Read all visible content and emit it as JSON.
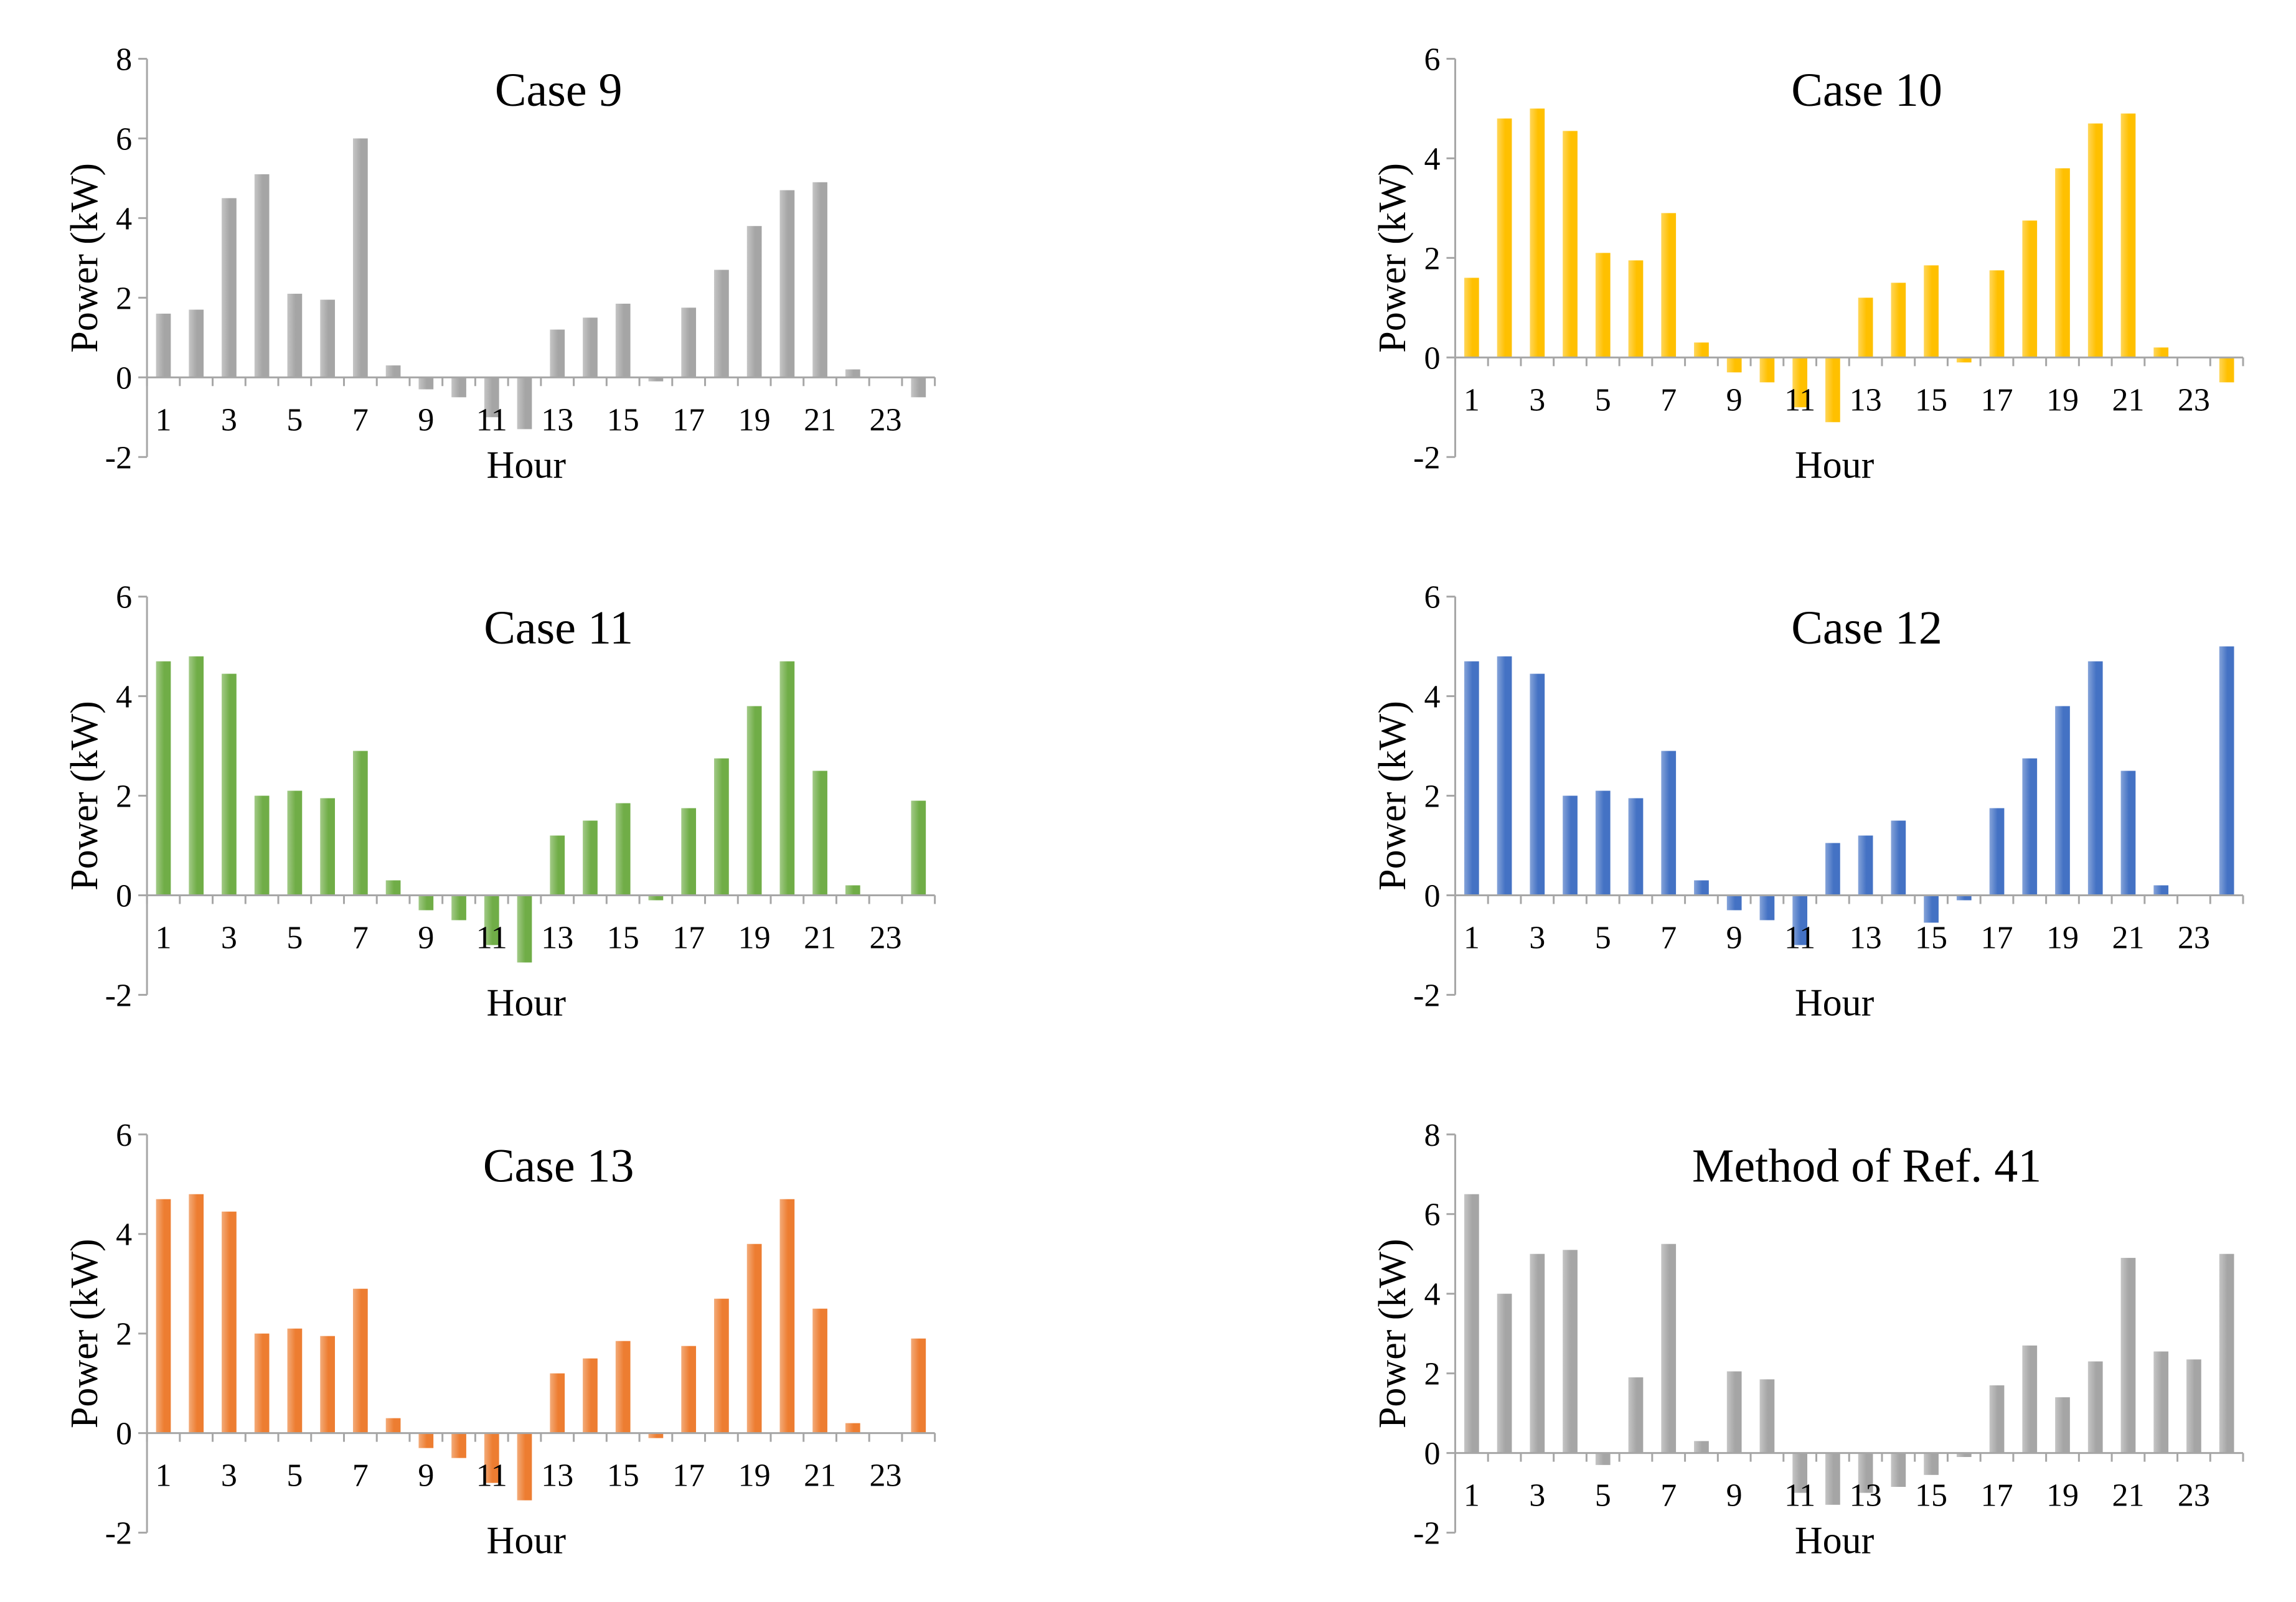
{
  "chart_data": [
    {
      "id": "case9",
      "type": "bar",
      "title": "Case 9",
      "xlabel": "Hour",
      "ylabel": "Power (kW)",
      "ylim": [
        -2,
        8
      ],
      "yticks": [
        "8",
        "6",
        "4",
        "2",
        "0",
        "-2"
      ],
      "xticks": [
        "1",
        "3",
        "5",
        "7",
        "9",
        "11",
        "13",
        "15",
        "17",
        "19",
        "21",
        "23"
      ],
      "categories": [
        1,
        2,
        3,
        4,
        5,
        6,
        7,
        8,
        9,
        10,
        11,
        12,
        13,
        14,
        15,
        16,
        17,
        18,
        19,
        20,
        21,
        22,
        23,
        24
      ],
      "values": [
        1.6,
        1.7,
        4.5,
        5.1,
        2.1,
        1.95,
        6.0,
        0.3,
        -0.3,
        -0.5,
        -1.0,
        -1.3,
        1.2,
        1.5,
        1.85,
        -0.1,
        1.75,
        2.7,
        3.8,
        4.7,
        4.9,
        0.2,
        0.0,
        -0.5
      ],
      "color": "#a5a5a5",
      "grid": false
    },
    {
      "id": "case10",
      "type": "bar",
      "title": "Case 10",
      "xlabel": "Hour",
      "ylabel": "Power (kW)",
      "ylim": [
        -2,
        6
      ],
      "yticks": [
        "6",
        "4",
        "2",
        "0",
        "-2"
      ],
      "xticks": [
        "1",
        "3",
        "5",
        "7",
        "9",
        "11",
        "13",
        "15",
        "17",
        "19",
        "21",
        "23"
      ],
      "categories": [
        1,
        2,
        3,
        4,
        5,
        6,
        7,
        8,
        9,
        10,
        11,
        12,
        13,
        14,
        15,
        16,
        17,
        18,
        19,
        20,
        21,
        22,
        23,
        24
      ],
      "values": [
        1.6,
        4.8,
        5.0,
        4.55,
        2.1,
        1.95,
        2.9,
        0.3,
        -0.3,
        -0.5,
        -1.0,
        -1.3,
        1.2,
        1.5,
        1.85,
        -0.1,
        1.75,
        2.75,
        3.8,
        4.7,
        4.9,
        0.2,
        0.0,
        -0.5
      ],
      "color": "#ffc000",
      "grid": false
    },
    {
      "id": "case11",
      "type": "bar",
      "title": "Case 11",
      "xlabel": "Hour",
      "ylabel": "Power (kW)",
      "ylim": [
        -2,
        6
      ],
      "yticks": [
        "6",
        "4",
        "2",
        "0",
        "-2"
      ],
      "xticks": [
        "1",
        "3",
        "5",
        "7",
        "9",
        "11",
        "13",
        "15",
        "17",
        "19",
        "21",
        "23"
      ],
      "categories": [
        1,
        2,
        3,
        4,
        5,
        6,
        7,
        8,
        9,
        10,
        11,
        12,
        13,
        14,
        15,
        16,
        17,
        18,
        19,
        20,
        21,
        22,
        23,
        24
      ],
      "values": [
        4.7,
        4.8,
        4.45,
        2.0,
        2.1,
        1.95,
        2.9,
        0.3,
        -0.3,
        -0.5,
        -1.0,
        -1.35,
        1.2,
        1.5,
        1.85,
        -0.1,
        1.75,
        2.75,
        3.8,
        4.7,
        2.5,
        0.2,
        0.0,
        1.9
      ],
      "color": "#70ad47",
      "grid": false
    },
    {
      "id": "case12",
      "type": "bar",
      "title": "Case 12",
      "xlabel": "Hour",
      "ylabel": "Power (kW)",
      "ylim": [
        -2,
        6
      ],
      "yticks": [
        "6",
        "4",
        "2",
        "0",
        "-2"
      ],
      "xticks": [
        "1",
        "3",
        "5",
        "7",
        "9",
        "11",
        "13",
        "15",
        "17",
        "19",
        "21",
        "23"
      ],
      "categories": [
        1,
        2,
        3,
        4,
        5,
        6,
        7,
        8,
        9,
        10,
        11,
        12,
        13,
        14,
        15,
        16,
        17,
        18,
        19,
        20,
        21,
        22,
        23,
        24
      ],
      "values": [
        4.7,
        4.8,
        4.45,
        2.0,
        2.1,
        1.95,
        2.9,
        0.3,
        -0.3,
        -0.5,
        -1.0,
        1.05,
        1.2,
        1.5,
        -0.55,
        -0.1,
        1.75,
        2.75,
        3.8,
        4.7,
        2.5,
        0.2,
        0.0,
        5.0
      ],
      "color": "#4472c4",
      "grid": false
    },
    {
      "id": "case13",
      "type": "bar",
      "title": "Case 13",
      "xlabel": "Hour",
      "ylabel": "Power (kW)",
      "ylim": [
        -2,
        6
      ],
      "yticks": [
        "6",
        "4",
        "2",
        "0",
        "-2"
      ],
      "xticks": [
        "1",
        "3",
        "5",
        "7",
        "9",
        "11",
        "13",
        "15",
        "17",
        "19",
        "21",
        "23"
      ],
      "categories": [
        1,
        2,
        3,
        4,
        5,
        6,
        7,
        8,
        9,
        10,
        11,
        12,
        13,
        14,
        15,
        16,
        17,
        18,
        19,
        20,
        21,
        22,
        23,
        24
      ],
      "values": [
        4.7,
        4.8,
        4.45,
        2.0,
        2.1,
        1.95,
        2.9,
        0.3,
        -0.3,
        -0.5,
        -1.0,
        -1.35,
        1.2,
        1.5,
        1.85,
        -0.1,
        1.75,
        2.7,
        3.8,
        4.7,
        2.5,
        0.2,
        0.0,
        1.9
      ],
      "color": "#ed7d31",
      "grid": false
    },
    {
      "id": "ref41",
      "type": "bar",
      "title": "Method of Ref.   41",
      "xlabel": "Hour",
      "ylabel": "Power (kW)",
      "ylim": [
        -2,
        8
      ],
      "yticks": [
        "8",
        "6",
        "4",
        "2",
        "0",
        "-2"
      ],
      "xticks": [
        "1",
        "3",
        "5",
        "7",
        "9",
        "11",
        "13",
        "15",
        "17",
        "19",
        "21",
        "23"
      ],
      "categories": [
        1,
        2,
        3,
        4,
        5,
        6,
        7,
        8,
        9,
        10,
        11,
        12,
        13,
        14,
        15,
        16,
        17,
        18,
        19,
        20,
        21,
        22,
        23,
        24
      ],
      "values": [
        6.5,
        4.0,
        5.0,
        5.1,
        -0.3,
        1.9,
        5.25,
        0.3,
        2.05,
        1.85,
        -1.0,
        -1.3,
        -1.0,
        -0.85,
        -0.55,
        -0.1,
        1.7,
        2.7,
        1.4,
        2.3,
        4.9,
        2.55,
        2.35,
        5.0
      ],
      "color": "#a5a5a5",
      "grid": false
    }
  ]
}
